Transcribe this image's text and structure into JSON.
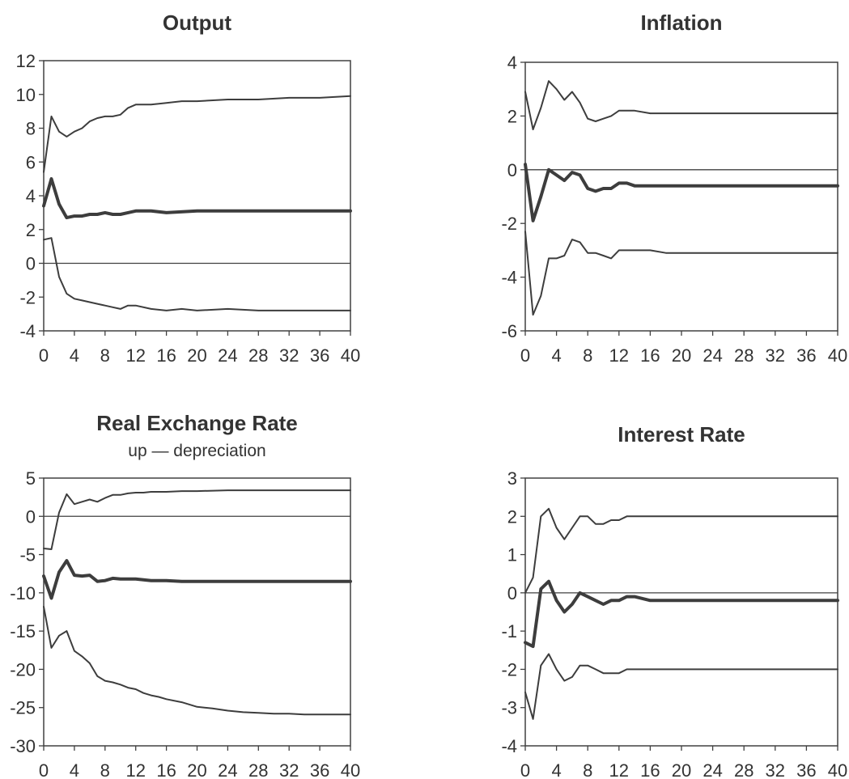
{
  "chart_data": [
    {
      "type": "line",
      "title": "Output",
      "subtitle": "",
      "ylim": [
        -4,
        12
      ],
      "yticks": [
        "12",
        "10",
        "8",
        "6",
        "4",
        "2",
        "0",
        "-2",
        "-4"
      ],
      "xlim": [
        0,
        40
      ],
      "xticks": [
        "0",
        "4",
        "8",
        "12",
        "16",
        "20",
        "24",
        "28",
        "32",
        "36",
        "40"
      ],
      "series": [
        {
          "role": "upper",
          "x": [
            0,
            1,
            2,
            3,
            4,
            5,
            6,
            7,
            8,
            9,
            10,
            11,
            12,
            13,
            14,
            16,
            18,
            20,
            24,
            28,
            32,
            36,
            40
          ],
          "y": [
            5.4,
            8.7,
            7.8,
            7.5,
            7.8,
            8.0,
            8.4,
            8.6,
            8.7,
            8.7,
            8.8,
            9.2,
            9.4,
            9.4,
            9.4,
            9.5,
            9.6,
            9.6,
            9.7,
            9.7,
            9.8,
            9.8,
            9.9
          ]
        },
        {
          "role": "median",
          "x": [
            0,
            1,
            2,
            3,
            4,
            5,
            6,
            7,
            8,
            9,
            10,
            11,
            12,
            14,
            16,
            20,
            24,
            28,
            32,
            36,
            40
          ],
          "y": [
            3.4,
            5.0,
            3.5,
            2.7,
            2.8,
            2.8,
            2.9,
            2.9,
            3.0,
            2.9,
            2.9,
            3.0,
            3.1,
            3.1,
            3.0,
            3.1,
            3.1,
            3.1,
            3.1,
            3.1,
            3.1
          ]
        },
        {
          "role": "lower",
          "x": [
            0,
            1,
            2,
            3,
            4,
            5,
            6,
            7,
            8,
            9,
            10,
            11,
            12,
            14,
            16,
            18,
            20,
            24,
            28,
            32,
            36,
            40
          ],
          "y": [
            1.4,
            1.5,
            -0.8,
            -1.8,
            -2.1,
            -2.2,
            -2.3,
            -2.4,
            -2.5,
            -2.6,
            -2.7,
            -2.5,
            -2.5,
            -2.7,
            -2.8,
            -2.7,
            -2.8,
            -2.7,
            -2.8,
            -2.8,
            -2.8,
            -2.8
          ]
        }
      ]
    },
    {
      "type": "line",
      "title": "Inflation",
      "subtitle": "",
      "ylim": [
        -6,
        4
      ],
      "yticks": [
        "4",
        "2",
        "0",
        "-2",
        "-4",
        "-6"
      ],
      "xlim": [
        0,
        40
      ],
      "xticks": [
        "0",
        "4",
        "8",
        "12",
        "16",
        "20",
        "24",
        "28",
        "32",
        "36",
        "40"
      ],
      "series": [
        {
          "role": "upper",
          "x": [
            0,
            1,
            2,
            3,
            4,
            5,
            6,
            7,
            8,
            9,
            10,
            11,
            12,
            13,
            14,
            16,
            18,
            20,
            24,
            28,
            32,
            36,
            40
          ],
          "y": [
            2.9,
            1.5,
            2.3,
            3.3,
            3.0,
            2.6,
            2.9,
            2.5,
            1.9,
            1.8,
            1.9,
            2.0,
            2.2,
            2.2,
            2.2,
            2.1,
            2.1,
            2.1,
            2.1,
            2.1,
            2.1,
            2.1,
            2.1
          ]
        },
        {
          "role": "median",
          "x": [
            0,
            1,
            2,
            3,
            4,
            5,
            6,
            7,
            8,
            9,
            10,
            11,
            12,
            13,
            14,
            16,
            18,
            20,
            24,
            28,
            32,
            36,
            40
          ],
          "y": [
            0.2,
            -1.9,
            -1.0,
            0.0,
            -0.2,
            -0.4,
            -0.1,
            -0.2,
            -0.7,
            -0.8,
            -0.7,
            -0.7,
            -0.5,
            -0.5,
            -0.6,
            -0.6,
            -0.6,
            -0.6,
            -0.6,
            -0.6,
            -0.6,
            -0.6,
            -0.6
          ]
        },
        {
          "role": "lower",
          "x": [
            0,
            1,
            2,
            3,
            4,
            5,
            6,
            7,
            8,
            9,
            10,
            11,
            12,
            13,
            14,
            16,
            18,
            20,
            24,
            28,
            32,
            36,
            40
          ],
          "y": [
            -2.3,
            -5.4,
            -4.7,
            -3.3,
            -3.3,
            -3.2,
            -2.6,
            -2.7,
            -3.1,
            -3.1,
            -3.2,
            -3.3,
            -3.0,
            -3.0,
            -3.0,
            -3.0,
            -3.1,
            -3.1,
            -3.1,
            -3.1,
            -3.1,
            -3.1,
            -3.1
          ]
        }
      ]
    },
    {
      "type": "line",
      "title": "Real Exchange Rate",
      "subtitle": "up — depreciation",
      "ylim": [
        -30,
        5
      ],
      "yticks": [
        "5",
        "0",
        "-5",
        "-10",
        "-15",
        "-20",
        "-25",
        "-30"
      ],
      "xlim": [
        0,
        40
      ],
      "xticks": [
        "0",
        "4",
        "8",
        "12",
        "16",
        "20",
        "24",
        "28",
        "32",
        "36",
        "40"
      ],
      "series": [
        {
          "role": "upper",
          "x": [
            0,
            1,
            2,
            3,
            4,
            5,
            6,
            7,
            8,
            9,
            10,
            11,
            12,
            13,
            14,
            16,
            18,
            20,
            24,
            28,
            32,
            36,
            40
          ],
          "y": [
            -4.2,
            -4.3,
            0.5,
            2.9,
            1.6,
            1.9,
            2.2,
            1.9,
            2.4,
            2.8,
            2.8,
            3.0,
            3.1,
            3.1,
            3.2,
            3.2,
            3.3,
            3.3,
            3.4,
            3.4,
            3.4,
            3.4,
            3.4
          ]
        },
        {
          "role": "median",
          "x": [
            0,
            1,
            2,
            3,
            4,
            5,
            6,
            7,
            8,
            9,
            10,
            11,
            12,
            13,
            14,
            16,
            18,
            20,
            24,
            28,
            32,
            36,
            40
          ],
          "y": [
            -7.8,
            -10.7,
            -7.3,
            -5.8,
            -7.7,
            -7.8,
            -7.7,
            -8.5,
            -8.4,
            -8.1,
            -8.2,
            -8.2,
            -8.2,
            -8.3,
            -8.4,
            -8.4,
            -8.5,
            -8.5,
            -8.5,
            -8.5,
            -8.5,
            -8.5,
            -8.5
          ]
        },
        {
          "role": "lower",
          "x": [
            0,
            1,
            2,
            3,
            4,
            5,
            6,
            7,
            8,
            9,
            10,
            11,
            12,
            13,
            14,
            15,
            16,
            18,
            20,
            22,
            24,
            26,
            28,
            30,
            32,
            34,
            36,
            38,
            40
          ],
          "y": [
            -11.8,
            -17.2,
            -15.6,
            -15.0,
            -17.6,
            -18.3,
            -19.2,
            -20.9,
            -21.5,
            -21.7,
            -22.0,
            -22.4,
            -22.6,
            -23.1,
            -23.4,
            -23.6,
            -23.9,
            -24.3,
            -24.9,
            -25.1,
            -25.4,
            -25.6,
            -25.7,
            -25.8,
            -25.8,
            -25.9,
            -25.9,
            -25.9,
            -25.9
          ]
        }
      ]
    },
    {
      "type": "line",
      "title": "Interest Rate",
      "subtitle": "",
      "ylim": [
        -4,
        3
      ],
      "yticks": [
        "3",
        "2",
        "1",
        "0",
        "-1",
        "-2",
        "-3",
        "-4"
      ],
      "xlim": [
        0,
        40
      ],
      "xticks": [
        "0",
        "4",
        "8",
        "12",
        "16",
        "20",
        "24",
        "28",
        "32",
        "36",
        "40"
      ],
      "series": [
        {
          "role": "upper",
          "x": [
            0,
            1,
            2,
            3,
            4,
            5,
            6,
            7,
            8,
            9,
            10,
            11,
            12,
            13,
            14,
            16,
            18,
            20,
            24,
            28,
            32,
            36,
            40
          ],
          "y": [
            0.0,
            0.4,
            2.0,
            2.2,
            1.7,
            1.4,
            1.7,
            2.0,
            2.0,
            1.8,
            1.8,
            1.9,
            1.9,
            2.0,
            2.0,
            2.0,
            2.0,
            2.0,
            2.0,
            2.0,
            2.0,
            2.0,
            2.0
          ]
        },
        {
          "role": "median",
          "x": [
            0,
            1,
            2,
            3,
            4,
            5,
            6,
            7,
            8,
            9,
            10,
            11,
            12,
            13,
            14,
            16,
            18,
            20,
            24,
            28,
            32,
            36,
            40
          ],
          "y": [
            -1.3,
            -1.4,
            0.1,
            0.3,
            -0.2,
            -0.5,
            -0.3,
            0.0,
            -0.1,
            -0.2,
            -0.3,
            -0.2,
            -0.2,
            -0.1,
            -0.1,
            -0.2,
            -0.2,
            -0.2,
            -0.2,
            -0.2,
            -0.2,
            -0.2,
            -0.2
          ]
        },
        {
          "role": "lower",
          "x": [
            0,
            1,
            2,
            3,
            4,
            5,
            6,
            7,
            8,
            9,
            10,
            11,
            12,
            13,
            14,
            16,
            18,
            20,
            24,
            28,
            32,
            36,
            40
          ],
          "y": [
            -2.6,
            -3.3,
            -1.9,
            -1.6,
            -2.0,
            -2.3,
            -2.2,
            -1.9,
            -1.9,
            -2.0,
            -2.1,
            -2.1,
            -2.1,
            -2.0,
            -2.0,
            -2.0,
            -2.0,
            -2.0,
            -2.0,
            -2.0,
            -2.0,
            -2.0,
            -2.0
          ]
        }
      ]
    }
  ]
}
